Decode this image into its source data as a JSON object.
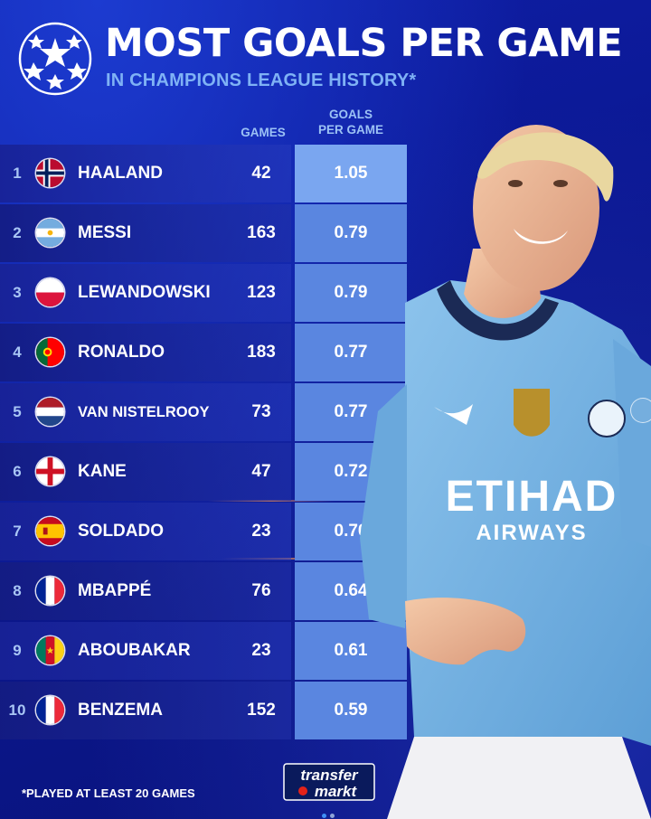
{
  "header": {
    "title": "MOST GOALS PER GAME",
    "subtitle": "IN CHAMPIONS LEAGUE HISTORY*",
    "logo_icon": "starball-icon"
  },
  "columns": {
    "games": "GAMES",
    "gpg_line1": "GOALS",
    "gpg_line2": "PER GAME"
  },
  "rows": [
    {
      "rank": "1",
      "flag": "norway-flag-icon",
      "name": "HAALAND",
      "games": "42",
      "gpg": "1.05"
    },
    {
      "rank": "2",
      "flag": "argentina-flag-icon",
      "name": "MESSI",
      "games": "163",
      "gpg": "0.79"
    },
    {
      "rank": "3",
      "flag": "poland-flag-icon",
      "name": "LEWANDOWSKI",
      "games": "123",
      "gpg": "0.79"
    },
    {
      "rank": "4",
      "flag": "portugal-flag-icon",
      "name": "RONALDO",
      "games": "183",
      "gpg": "0.77"
    },
    {
      "rank": "5",
      "flag": "netherlands-flag-icon",
      "name": "VAN NISTELROOY",
      "games": "73",
      "gpg": "0.77"
    },
    {
      "rank": "6",
      "flag": "england-flag-icon",
      "name": "KANE",
      "games": "47",
      "gpg": "0.72"
    },
    {
      "rank": "7",
      "flag": "spain-flag-icon",
      "name": "SOLDADO",
      "games": "23",
      "gpg": "0.70"
    },
    {
      "rank": "8",
      "flag": "france-flag-icon",
      "name": "MBAPPÉ",
      "games": "76",
      "gpg": "0.64"
    },
    {
      "rank": "9",
      "flag": "cameroon-flag-icon",
      "name": "ABOUBAKAR",
      "games": "23",
      "gpg": "0.61"
    },
    {
      "rank": "10",
      "flag": "france-flag-icon",
      "name": "BENZEMA",
      "games": "152",
      "gpg": "0.59"
    }
  ],
  "footer": {
    "footnote": "*PLAYED AT LEAST 20 GAMES",
    "brand_line1": "transfer",
    "brand_line2": "markt",
    "carousel_pages": 2,
    "carousel_active": 1
  },
  "player_shirt": {
    "sponsor": "ETIHAD",
    "sponsor_sub": "AIRWAYS"
  },
  "colors": {
    "background": "#0b1790",
    "goals_cell": "#5a86e0",
    "goals_cell_top": "#7aa6f0",
    "subtitle": "#7fb2f5",
    "shirt": "#6cabdd"
  }
}
